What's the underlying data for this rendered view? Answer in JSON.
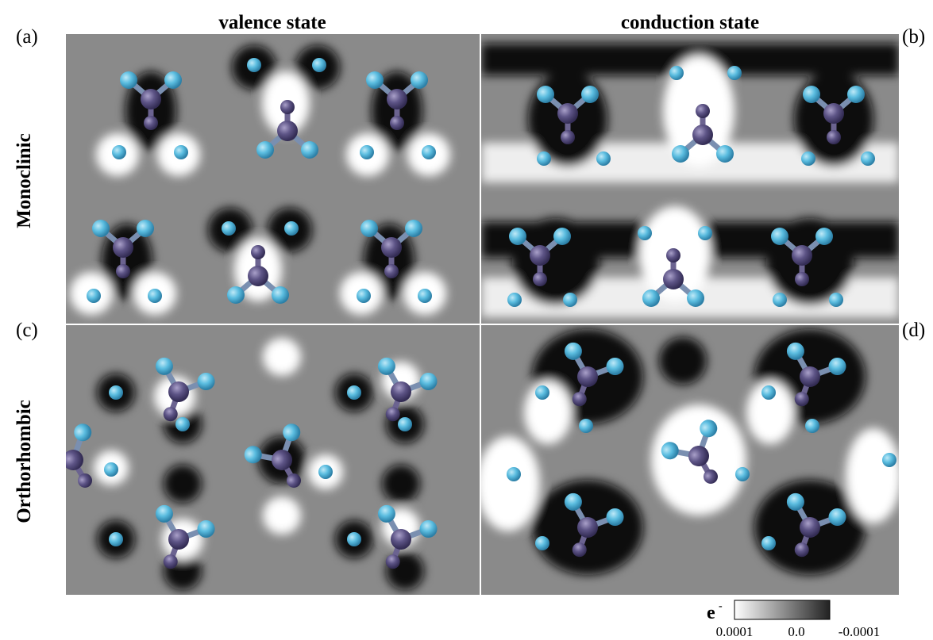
{
  "columns": [
    "valence state",
    "conduction state"
  ],
  "rows": [
    "Monoclinic",
    "Orthorhombic"
  ],
  "panels": [
    "(a)",
    "(b)",
    "(c)",
    "(d)"
  ],
  "colorbar": {
    "label": "e",
    "superscript": "-",
    "ticks": [
      "0.0001",
      "0.0",
      "-0.0001"
    ]
  }
}
